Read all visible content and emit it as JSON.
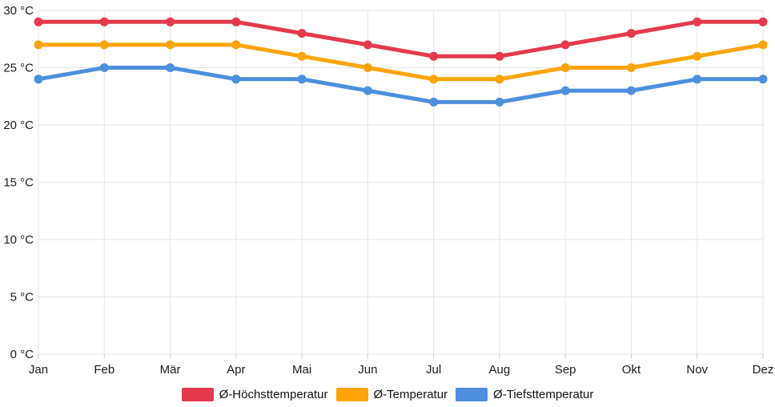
{
  "chart_data": {
    "type": "line",
    "title": "",
    "categories": [
      "Jan",
      "Feb",
      "Mär",
      "Apr",
      "Mai",
      "Jun",
      "Jul",
      "Aug",
      "Sep",
      "Okt",
      "Nov",
      "Dez"
    ],
    "series": [
      {
        "name": "Ø-Höchsttemperatur",
        "color": "#e5394e",
        "values": [
          29,
          29,
          29,
          29,
          28,
          27,
          26,
          26,
          27,
          28,
          29,
          29
        ]
      },
      {
        "name": "Ø-Temperatur",
        "color": "#fca40a",
        "values": [
          27,
          27,
          27,
          27,
          26,
          25,
          24,
          24,
          25,
          25,
          26,
          27
        ]
      },
      {
        "name": "Ø-Tiefsttemperatur",
        "color": "#4d8fdd",
        "values": [
          24,
          25,
          25,
          24,
          24,
          23,
          22,
          22,
          23,
          23,
          24,
          24
        ]
      }
    ],
    "y_axis": {
      "min": 0,
      "max": 30,
      "step": 5,
      "unit": "°C",
      "tick_labels": [
        "0 °C",
        "5 °C",
        "10 °C",
        "15 °C",
        "20 °C",
        "25 °C",
        "30 °C"
      ]
    },
    "xlabel": "",
    "ylabel": "",
    "grid": true,
    "legend_position": "bottom"
  },
  "styles": {
    "grid_color": "#e6e6e6",
    "tick_color": "#c9c9c9",
    "text_color": "#1a1a1a",
    "background": "#ffffff"
  }
}
